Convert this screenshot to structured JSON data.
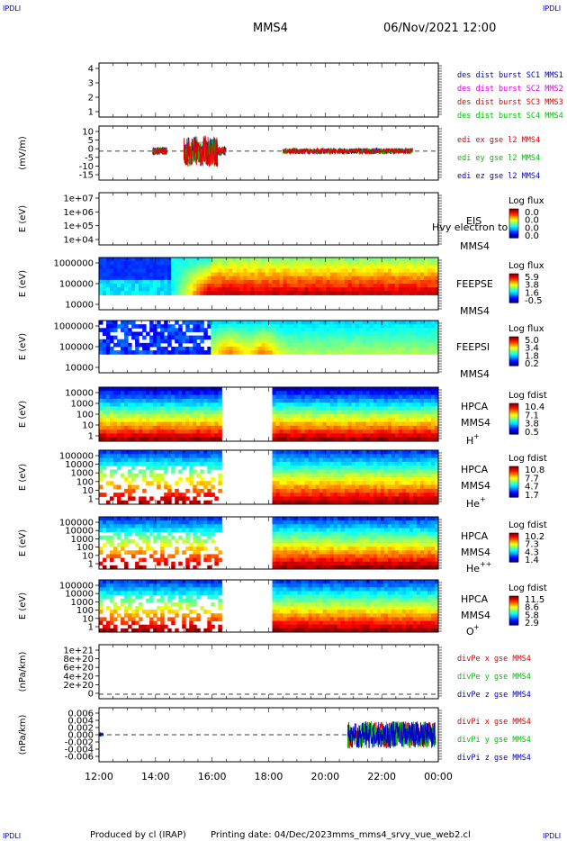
{
  "header": {
    "corner_tl": "IPDLI",
    "corner_tr": "IPDLI",
    "corner_bl": "IPDLI",
    "corner_br": "IPDLI",
    "mission": "MMS4",
    "datetime": "06/Nov/2021 12:00"
  },
  "footer": {
    "produced_by": "Produced by cl (IRAP)",
    "printing_date": "Printing date: 04/Dec/2023",
    "filename": "mms_mms4_srvy_vue_web2.cl"
  },
  "time_axis": {
    "tick_labels": [
      "12:00",
      "14:00",
      "16:00",
      "18:00",
      "20:00",
      "22:00",
      "00:00"
    ],
    "start_hour": 12,
    "end_hour": 24
  },
  "colors": {
    "red": "#e00000",
    "magenta": "#e000e0",
    "green": "#00c000",
    "blue": "#0000cc"
  },
  "chart_data": [
    {
      "id": "burst",
      "type": "line",
      "ylabel": "",
      "yticks": [
        "4",
        "3",
        "2",
        "1"
      ],
      "ylim": [
        0.7,
        4.5
      ],
      "legend": [
        {
          "label": "des dist burst SC1 MMS1",
          "color": "#0000cc"
        },
        {
          "label": "des dist burst SC2 MMS2",
          "color": "#e000e0"
        },
        {
          "label": "des dist burst SC3 MMS3",
          "color": "#e00000"
        },
        {
          "label": "des dist burst SC4 MMS4",
          "color": "#00c000"
        }
      ],
      "series": []
    },
    {
      "id": "edi",
      "type": "line",
      "ylabel": "(mV/m)",
      "yticks": [
        "10",
        "5",
        "0",
        "-5",
        "-10",
        "-15"
      ],
      "ylim": [
        -15,
        13
      ],
      "legend": [
        {
          "label": "edi ex gse l2 MMS4",
          "color": "#e00000"
        },
        {
          "label": "edi ey gse l2 MMS4",
          "color": "#00c000"
        },
        {
          "label": "edi ez gse l2 MMS4",
          "color": "#0000cc"
        }
      ],
      "activity": [
        {
          "t0": 13.9,
          "t1": 14.4,
          "amp": 2.0
        },
        {
          "t0": 15.0,
          "t1": 16.2,
          "amp": 8.0
        },
        {
          "t0": 16.2,
          "t1": 16.5,
          "amp": 2.5
        },
        {
          "t0": 18.5,
          "t1": 23.1,
          "amp": 1.5
        }
      ]
    },
    {
      "id": "eis",
      "type": "heatmap",
      "ylabel": "E (eV)",
      "yticks": [
        "1e+07",
        "1e+06",
        "1e+05",
        "1e+04"
      ],
      "labels": [
        "EIS",
        "Hvy electron to",
        "MMS4"
      ],
      "cbar_title": "Log flux",
      "cbar_ticks": [
        "0.0",
        "0.0",
        "0.0",
        "0.0"
      ],
      "values": "empty"
    },
    {
      "id": "feepse",
      "type": "heatmap",
      "ylabel": "E (eV)",
      "yticks": [
        "1000000",
        "100000",
        "10000"
      ],
      "labels": [
        "FEEPSE",
        "MMS4"
      ],
      "cbar_title": "Log flux",
      "cbar_ticks": [
        "5.9",
        "3.8",
        "1.6",
        "-0.5"
      ]
    },
    {
      "id": "feepsi",
      "type": "heatmap",
      "ylabel": "E (eV)",
      "yticks": [
        "1000000",
        "100000",
        "10000"
      ],
      "labels": [
        "FEEPSI",
        "MMS4"
      ],
      "cbar_title": "Log flux",
      "cbar_ticks": [
        "5.0",
        "3.4",
        "1.8",
        "0.2"
      ]
    },
    {
      "id": "hpca_h",
      "type": "heatmap",
      "ylabel": "E (eV)",
      "yticks": [
        "10000",
        "1000",
        "100",
        "10",
        "1"
      ],
      "labels": [
        "HPCA",
        "MMS4"
      ],
      "species": "H",
      "species_sup": "+",
      "cbar_title": "Log fdist",
      "cbar_ticks": [
        "10.4",
        "7.1",
        "3.8",
        "0.5"
      ],
      "gap_hours": [
        16.4,
        18.1
      ]
    },
    {
      "id": "hpca_he",
      "type": "heatmap",
      "ylabel": "E (eV)",
      "yticks": [
        "100000",
        "10000",
        "1000",
        "100",
        "10",
        "1"
      ],
      "labels": [
        "HPCA",
        "MMS4"
      ],
      "species": "He",
      "species_sup": "+",
      "cbar_title": "Log fdist",
      "cbar_ticks": [
        "10.8",
        "7.7",
        "4.7",
        "1.7"
      ],
      "gap_hours": [
        16.4,
        18.1
      ]
    },
    {
      "id": "hpca_hepp",
      "type": "heatmap",
      "ylabel": "E (eV)",
      "yticks": [
        "100000",
        "10000",
        "1000",
        "100",
        "10",
        "1"
      ],
      "labels": [
        "HPCA",
        "MMS4"
      ],
      "species": "He",
      "species_sup": "++",
      "cbar_title": "Log fdist",
      "cbar_ticks": [
        "10.2",
        "7.3",
        "4.3",
        "1.4"
      ],
      "gap_hours": [
        16.4,
        18.1
      ]
    },
    {
      "id": "hpca_o",
      "type": "heatmap",
      "ylabel": "E (eV)",
      "yticks": [
        "100000",
        "10000",
        "1000",
        "100",
        "10",
        "1"
      ],
      "labels": [
        "HPCA",
        "MMS4"
      ],
      "species": "O",
      "species_sup": "+",
      "cbar_title": "Log fdist",
      "cbar_ticks": [
        "11.5",
        "8.6",
        "5.8",
        "2.9"
      ],
      "gap_hours": [
        16.4,
        18.1
      ]
    },
    {
      "id": "divpe",
      "type": "line",
      "ylabel": "(nPa/km)",
      "yticks": [
        "1e+21",
        "8e+20",
        "6e+20",
        "4e+20",
        "2e+20",
        "0"
      ],
      "legend": [
        {
          "label": "divPe x gse MMS4",
          "color": "#e00000"
        },
        {
          "label": "divPe y gse MMS4",
          "color": "#00c000"
        },
        {
          "label": "divPe z gse MMS4",
          "color": "#0000cc"
        }
      ]
    },
    {
      "id": "divpi",
      "type": "line",
      "ylabel": "(nPa/km)",
      "yticks": [
        "0.006",
        "0.004",
        "0.002",
        "0.000",
        "-0.002",
        "-0.004",
        "-0.006"
      ],
      "ylim": [
        -0.007,
        0.007
      ],
      "legend": [
        {
          "label": "divPi x gse MMS4",
          "color": "#e00000"
        },
        {
          "label": "divPi y gse MMS4",
          "color": "#00c000"
        },
        {
          "label": "divPi z gse MMS4",
          "color": "#0000cc"
        }
      ],
      "activity": [
        {
          "t0": 12.0,
          "t1": 12.15,
          "amp": 0.0005
        },
        {
          "t0": 20.8,
          "t1": 23.9,
          "amp": 0.0035
        }
      ]
    }
  ]
}
